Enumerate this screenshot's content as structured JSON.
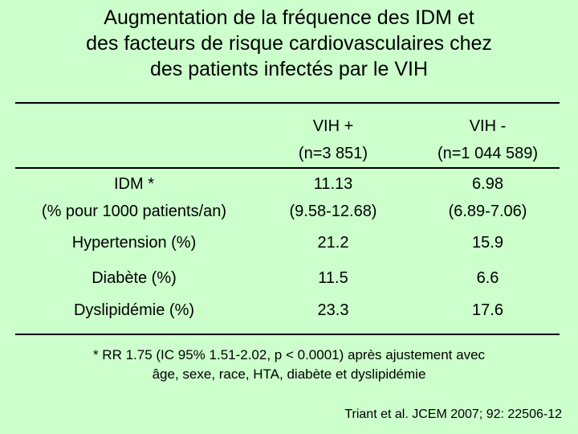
{
  "title": {
    "line1": "Augmentation de la fréquence des IDM et",
    "line2": "des facteurs de risque cardiovasculaires chez",
    "line3": "des patients infectés par le VIH"
  },
  "table": {
    "headers": [
      {
        "line1": "VIH +",
        "line2": "(n=3 851)"
      },
      {
        "line1": "VIH -",
        "line2": "(n=1 044 589)"
      }
    ],
    "rows": [
      {
        "label_line1": "IDM *",
        "label_line2": "(% pour 1000 patients/an)",
        "pos_line1": "11.13",
        "pos_line2": "(9.58-12.68)",
        "neg_line1": "6.98",
        "neg_line2": "(6.89-7.06)"
      },
      {
        "label": "Hypertension (%)",
        "pos": "21.2",
        "neg": "15.9"
      },
      {
        "label": "Diabète (%)",
        "pos": "11.5",
        "neg": "6.6"
      },
      {
        "label": "Dyslipidémie (%)",
        "pos": "23.3",
        "neg": "17.6"
      }
    ]
  },
  "footnote": {
    "line1": "* RR 1.75 (IC 95% 1.51-2.02, p < 0.0001) après ajustement avec",
    "line2": "âge, sexe, race, HTA, diabète et dyslipidémie"
  },
  "source": "Triant et al. JCEM 2007; 92: 22506-12",
  "colors": {
    "background": "#ccffcc",
    "text": "#000000"
  }
}
